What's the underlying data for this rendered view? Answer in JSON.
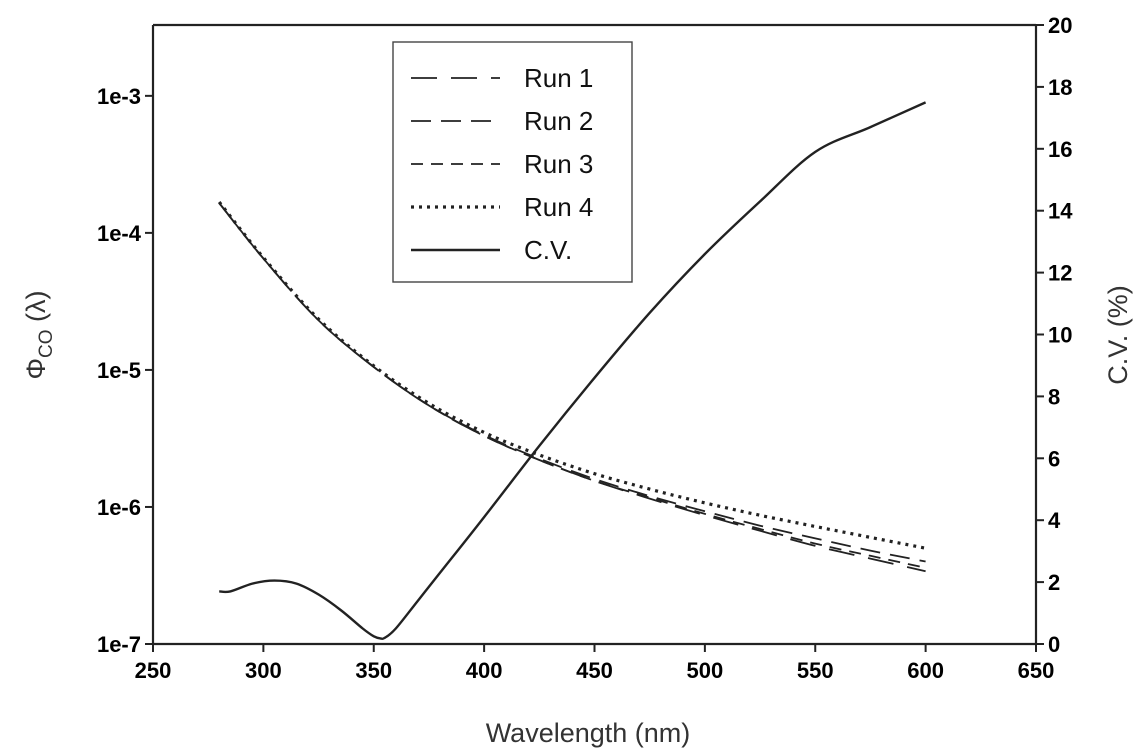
{
  "chart_data": {
    "type": "line",
    "title": "",
    "xlabel": "Wavelength (nm)",
    "ylabel_left": "Φ",
    "ylabel_left_sub": "CO",
    "ylabel_left_tail": " (λ)",
    "ylabel_right": "C.V. (%)",
    "xlim": [
      250,
      650
    ],
    "ylim_left": [
      1e-07,
      0.003
    ],
    "ylim_right": [
      0,
      20
    ],
    "y_left_scale": "log",
    "grid": false,
    "legend_position": "top-center",
    "x_ticks": [
      250,
      300,
      350,
      400,
      450,
      500,
      550,
      600,
      650
    ],
    "x_tick_labels": [
      "250",
      "300",
      "350",
      "400",
      "450",
      "500",
      "550",
      "600",
      "650"
    ],
    "y_left_ticks": [
      1e-07,
      1e-06,
      1e-05,
      0.0001,
      0.001
    ],
    "y_left_tick_labels": [
      "1e-7",
      "1e-6",
      "1e-5",
      "1e-4",
      "1e-3"
    ],
    "y_right_ticks": [
      0,
      2,
      4,
      6,
      8,
      10,
      12,
      14,
      16,
      18,
      20
    ],
    "y_right_tick_labels": [
      "0",
      "2",
      "4",
      "6",
      "8",
      "10",
      "12",
      "14",
      "16",
      "18",
      "20"
    ],
    "series": [
      {
        "name": "Run 1",
        "axis": "left",
        "dash": "long-dash",
        "x": [
          280,
          300,
          325,
          350,
          375,
          400,
          425,
          450,
          475,
          500,
          525,
          550,
          575,
          600
        ],
        "y": [
          0.000165,
          6.5e-05,
          2.3e-05,
          1.05e-05,
          5.5e-06,
          3.3e-06,
          2.2e-06,
          1.55e-06,
          1.15e-06,
          8.7e-07,
          6.7e-07,
          5.2e-07,
          4.2e-07,
          3.4e-07
        ]
      },
      {
        "name": "Run 2",
        "axis": "left",
        "dash": "medium-dash",
        "x": [
          280,
          300,
          325,
          350,
          375,
          400,
          425,
          450,
          475,
          500,
          525,
          550,
          575,
          600
        ],
        "y": [
          0.000165,
          6.5e-05,
          2.3e-05,
          1.05e-05,
          5.5e-06,
          3.35e-06,
          2.25e-06,
          1.6e-06,
          1.2e-06,
          9.3e-07,
          7.3e-07,
          5.9e-07,
          4.8e-07,
          4e-07
        ]
      },
      {
        "name": "Run 3",
        "axis": "left",
        "dash": "short-dash",
        "x": [
          280,
          300,
          325,
          350,
          375,
          400,
          425,
          450,
          475,
          500,
          525,
          550,
          575,
          600
        ],
        "y": [
          0.000165,
          6.5e-05,
          2.3e-05,
          1.05e-05,
          5.5e-06,
          3.3e-06,
          2.2e-06,
          1.55e-06,
          1.17e-06,
          8.9e-07,
          6.9e-07,
          5.4e-07,
          4.4e-07,
          3.6e-07
        ]
      },
      {
        "name": "Run 4",
        "axis": "left",
        "dash": "dotted",
        "x": [
          280,
          300,
          325,
          350,
          375,
          400,
          425,
          450,
          475,
          500,
          525,
          550,
          575,
          600
        ],
        "y": [
          0.000168,
          6.6e-05,
          2.35e-05,
          1.07e-05,
          5.7e-06,
          3.5e-06,
          2.4e-06,
          1.75e-06,
          1.35e-06,
          1.07e-06,
          8.7e-07,
          7.2e-07,
          6e-07,
          5e-07
        ]
      },
      {
        "name": "C.V.",
        "axis": "right",
        "dash": "solid",
        "x": [
          280,
          285,
          295,
          305,
          315,
          325,
          335,
          345,
          350,
          353,
          355,
          360,
          370,
          380,
          400,
          425,
          450,
          475,
          500,
          525,
          550,
          575,
          600
        ],
        "y": [
          1.7,
          1.7,
          1.95,
          2.05,
          1.95,
          1.6,
          1.1,
          0.5,
          0.25,
          0.18,
          0.2,
          0.5,
          1.4,
          2.3,
          4.1,
          6.4,
          8.6,
          10.7,
          12.6,
          14.3,
          15.9,
          16.7,
          17.5
        ]
      }
    ]
  }
}
